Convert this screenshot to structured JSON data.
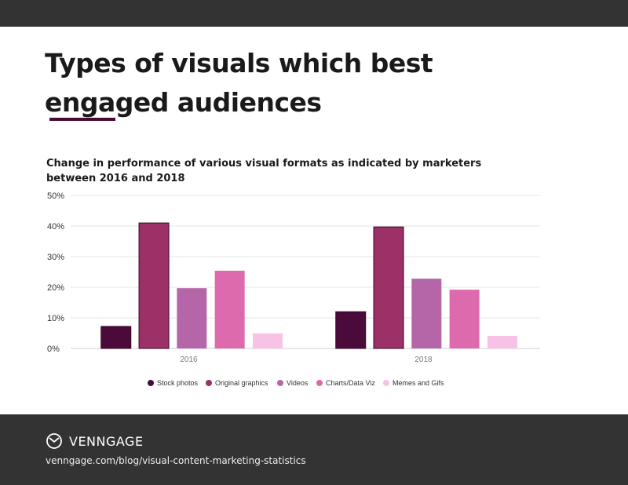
{
  "title_line1": "Types of visuals which best",
  "title_line2": "engaged audiences",
  "chart_data": {
    "type": "bar",
    "title": "Change in performance of various visual formats as indicated by marketers between 2016 and 2018",
    "categories": [
      "2016",
      "2018"
    ],
    "ylim": [
      0,
      50
    ],
    "yticks": [
      "0%",
      "10%",
      "20%",
      "30%",
      "40%",
      "50%"
    ],
    "grid": true,
    "legend_position": "bottom",
    "series": [
      {
        "name": "Stock photos",
        "color": "#4a0a3a",
        "values": [
          7.2,
          12.0
        ]
      },
      {
        "name": "Original graphics",
        "color": "#9b3166",
        "values": [
          41.0,
          39.7
        ]
      },
      {
        "name": "Videos",
        "color": "#b566a8",
        "values": [
          19.7,
          22.8
        ]
      },
      {
        "name": "Charts/Data Viz",
        "color": "#dc6aad",
        "values": [
          25.4,
          19.2
        ]
      },
      {
        "name": "Memes and Gifs",
        "color": "#f8c2e6",
        "values": [
          4.9,
          4.1
        ]
      }
    ]
  },
  "footer": {
    "brand": "VENNGAGE",
    "url": "venngage.com/blog/visual-content-marketing-statistics"
  }
}
